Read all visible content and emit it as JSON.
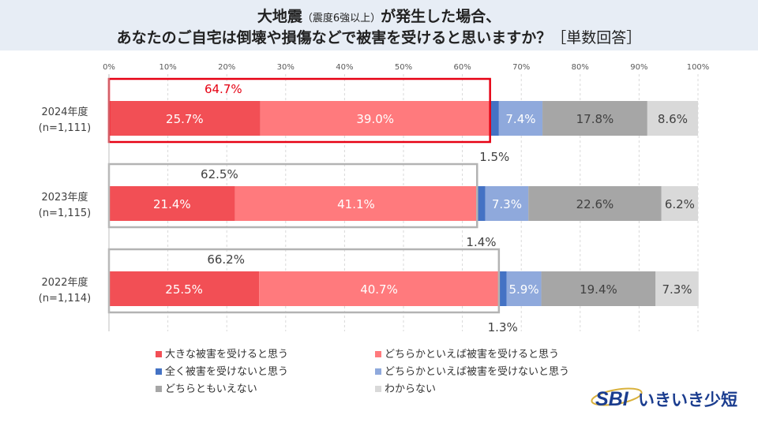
{
  "title": {
    "line1_main": "大地震",
    "line1_note": "（震度6強以上）",
    "line1_rest": "が発生した場合、",
    "line2_main": "あなたのご自宅は倒壊や損傷などで被害を受けると思いますか？",
    "line2_note": "［単数回答］"
  },
  "chart_data": {
    "type": "stacked-bar-horizontal",
    "x_ticks": [
      "0%",
      "10%",
      "20%",
      "30%",
      "40%",
      "50%",
      "60%",
      "70%",
      "80%",
      "90%",
      "100%"
    ],
    "xlim": [
      0,
      100
    ],
    "series": [
      {
        "name": "大きな被害を受けると思う",
        "color": "#f24f55"
      },
      {
        "name": "どちらかといえば被害を受けると思う",
        "color": "#ff7a7d"
      },
      {
        "name": "全く被害を受けないと思う",
        "color": "#4472c4"
      },
      {
        "name": "どちらかといえば被害を受けないと思う",
        "color": "#8fa9dc"
      },
      {
        "name": "どちらともいえない",
        "color": "#a6a6a6"
      },
      {
        "name": "わからない",
        "color": "#d9d9d9"
      }
    ],
    "rows": [
      {
        "label1": "2024年度",
        "label2": "(n=1,111)",
        "values": [
          25.7,
          39.0,
          1.5,
          7.4,
          17.8,
          8.6
        ],
        "labels": [
          "25.7%",
          "39.0%",
          "1.5%",
          "7.4%",
          "17.8%",
          "8.6%"
        ],
        "total": "64.7%",
        "highlight": true
      },
      {
        "label1": "2023年度",
        "label2": "(n=1,115)",
        "values": [
          21.4,
          41.1,
          1.4,
          7.3,
          22.6,
          6.2
        ],
        "labels": [
          "21.4%",
          "41.1%",
          "1.4%",
          "7.3%",
          "22.6%",
          "6.2%"
        ],
        "total": "62.5%",
        "highlight": false
      },
      {
        "label1": "2022年度",
        "label2": "(n=1,114)",
        "values": [
          25.5,
          40.7,
          1.3,
          5.9,
          19.4,
          7.3
        ],
        "labels": [
          "25.5%",
          "40.7%",
          "1.3%",
          "5.9%",
          "19.4%",
          "7.3%"
        ],
        "total": "66.2%",
        "highlight": false
      }
    ],
    "highlight_color": "#e60012",
    "box_color": "#b3b3b3"
  },
  "logo": {
    "mark": "SBI",
    "name": "いきいき少短",
    "color": "#1b3d8f"
  }
}
